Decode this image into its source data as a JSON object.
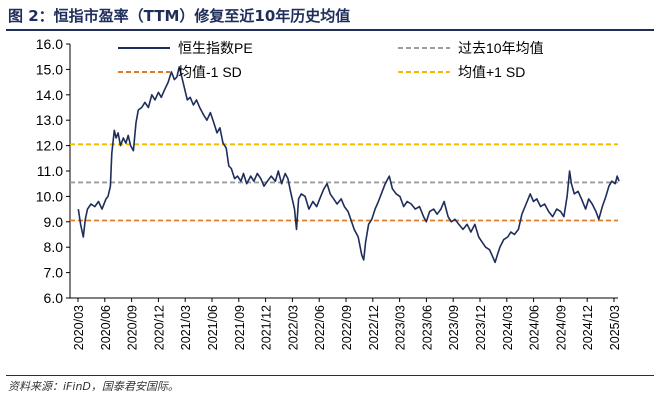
{
  "title": "图 2：恒指市盈率（TTM）修复至近10年历史均值",
  "source": "资料来源：iFinD，国泰君安国际。",
  "chart_data": {
    "type": "line",
    "title": "恒指市盈率（TTM）修复至近10年历史均值",
    "xlabel": "",
    "ylabel": "",
    "ylim": [
      6.0,
      16.0
    ],
    "yticks": [
      "16.0",
      "15.0",
      "14.0",
      "13.0",
      "12.0",
      "11.0",
      "10.0",
      "9.0",
      "8.0",
      "7.0",
      "6.0"
    ],
    "xticks": [
      "2020/03",
      "2020/06",
      "2020/09",
      "2020/12",
      "2021/03",
      "2021/06",
      "2021/09",
      "2021/12",
      "2022/03",
      "2022/06",
      "2022/09",
      "2022/12",
      "2023/03",
      "2023/06",
      "2023/09",
      "2023/12",
      "2024/03",
      "2024/06",
      "2024/09",
      "2024/12",
      "2025/03"
    ],
    "grid": false,
    "legend_placement": "top",
    "series": [
      {
        "name": "恒生指数PE",
        "color": "#1f2d5a",
        "style": "solid",
        "points": [
          [
            "2020-03-02",
            9.5
          ],
          [
            "2020-03-10",
            8.9
          ],
          [
            "2020-03-19",
            8.4
          ],
          [
            "2020-03-26",
            9.1
          ],
          [
            "2020-04-03",
            9.5
          ],
          [
            "2020-04-15",
            9.7
          ],
          [
            "2020-04-28",
            9.6
          ],
          [
            "2020-05-10",
            9.8
          ],
          [
            "2020-05-22",
            9.5
          ],
          [
            "2020-06-05",
            9.9
          ],
          [
            "2020-06-12",
            10.0
          ],
          [
            "2020-06-20",
            10.4
          ],
          [
            "2020-06-25",
            11.7
          ],
          [
            "2020-07-03",
            12.6
          ],
          [
            "2020-07-09",
            12.3
          ],
          [
            "2020-07-16",
            12.5
          ],
          [
            "2020-07-24",
            12.0
          ],
          [
            "2020-08-03",
            12.3
          ],
          [
            "2020-08-12",
            12.1
          ],
          [
            "2020-08-20",
            12.4
          ],
          [
            "2020-08-28",
            12.0
          ],
          [
            "2020-09-07",
            11.8
          ],
          [
            "2020-09-16",
            12.9
          ],
          [
            "2020-09-24",
            13.4
          ],
          [
            "2020-10-05",
            13.5
          ],
          [
            "2020-10-16",
            13.7
          ],
          [
            "2020-10-28",
            13.5
          ],
          [
            "2020-11-09",
            14.0
          ],
          [
            "2020-11-20",
            13.8
          ],
          [
            "2020-12-01",
            14.1
          ],
          [
            "2020-12-11",
            13.9
          ],
          [
            "2020-12-22",
            14.2
          ],
          [
            "2021-01-04",
            14.5
          ],
          [
            "2021-01-15",
            14.9
          ],
          [
            "2021-01-25",
            14.6
          ],
          [
            "2021-02-03",
            14.7
          ],
          [
            "2021-02-11",
            15.1
          ],
          [
            "2021-02-18",
            14.8
          ],
          [
            "2021-02-26",
            14.4
          ],
          [
            "2021-03-08",
            13.8
          ],
          [
            "2021-03-18",
            13.9
          ],
          [
            "2021-03-29",
            13.6
          ],
          [
            "2021-04-09",
            13.8
          ],
          [
            "2021-04-20",
            13.5
          ],
          [
            "2021-05-03",
            13.2
          ],
          [
            "2021-05-14",
            13.0
          ],
          [
            "2021-05-26",
            13.3
          ],
          [
            "2021-06-07",
            12.9
          ],
          [
            "2021-06-18",
            12.5
          ],
          [
            "2021-06-28",
            12.7
          ],
          [
            "2021-07-08",
            12.1
          ],
          [
            "2021-07-19",
            11.9
          ],
          [
            "2021-07-28",
            11.2
          ],
          [
            "2021-08-06",
            11.1
          ],
          [
            "2021-08-17",
            10.7
          ],
          [
            "2021-08-27",
            10.8
          ],
          [
            "2021-09-08",
            10.6
          ],
          [
            "2021-09-17",
            10.9
          ],
          [
            "2021-09-28",
            10.5
          ],
          [
            "2021-10-11",
            10.8
          ],
          [
            "2021-10-22",
            10.6
          ],
          [
            "2021-11-03",
            10.9
          ],
          [
            "2021-11-15",
            10.7
          ],
          [
            "2021-11-26",
            10.4
          ],
          [
            "2021-12-07",
            10.6
          ],
          [
            "2021-12-20",
            10.8
          ],
          [
            "2022-01-04",
            10.6
          ],
          [
            "2022-01-14",
            11.0
          ],
          [
            "2022-01-25",
            10.5
          ],
          [
            "2022-02-07",
            10.9
          ],
          [
            "2022-02-16",
            10.7
          ],
          [
            "2022-02-25",
            10.2
          ],
          [
            "2022-03-08",
            9.5
          ],
          [
            "2022-03-15",
            8.7
          ],
          [
            "2022-03-22",
            9.9
          ],
          [
            "2022-04-01",
            10.1
          ],
          [
            "2022-04-14",
            10.0
          ],
          [
            "2022-04-27",
            9.5
          ],
          [
            "2022-05-10",
            9.8
          ],
          [
            "2022-05-23",
            9.6
          ],
          [
            "2022-06-06",
            10.0
          ],
          [
            "2022-06-17",
            10.3
          ],
          [
            "2022-06-28",
            10.5
          ],
          [
            "2022-07-08",
            10.1
          ],
          [
            "2022-07-20",
            9.9
          ],
          [
            "2022-08-01",
            9.7
          ],
          [
            "2022-08-15",
            9.9
          ],
          [
            "2022-08-26",
            9.6
          ],
          [
            "2022-09-08",
            9.4
          ],
          [
            "2022-09-20",
            9.0
          ],
          [
            "2022-09-29",
            8.7
          ],
          [
            "2022-10-12",
            8.4
          ],
          [
            "2022-10-24",
            7.7
          ],
          [
            "2022-10-31",
            7.5
          ],
          [
            "2022-11-07",
            8.2
          ],
          [
            "2022-11-17",
            8.9
          ],
          [
            "2022-11-28",
            9.1
          ],
          [
            "2022-12-09",
            9.5
          ],
          [
            "2022-12-20",
            9.8
          ],
          [
            "2023-01-03",
            10.2
          ],
          [
            "2023-01-13",
            10.5
          ],
          [
            "2023-01-27",
            10.8
          ],
          [
            "2023-02-07",
            10.3
          ],
          [
            "2023-02-20",
            10.1
          ],
          [
            "2023-03-02",
            10.0
          ],
          [
            "2023-03-15",
            9.6
          ],
          [
            "2023-03-27",
            9.8
          ],
          [
            "2023-04-10",
            9.7
          ],
          [
            "2023-04-24",
            9.5
          ],
          [
            "2023-05-08",
            9.6
          ],
          [
            "2023-05-22",
            9.2
          ],
          [
            "2023-05-31",
            9.0
          ],
          [
            "2023-06-12",
            9.4
          ],
          [
            "2023-06-26",
            9.5
          ],
          [
            "2023-07-07",
            9.3
          ],
          [
            "2023-07-20",
            9.5
          ],
          [
            "2023-07-31",
            9.8
          ],
          [
            "2023-08-14",
            9.2
          ],
          [
            "2023-08-25",
            9.0
          ],
          [
            "2023-09-07",
            9.1
          ],
          [
            "2023-09-20",
            8.9
          ],
          [
            "2023-10-04",
            8.7
          ],
          [
            "2023-10-18",
            8.9
          ],
          [
            "2023-10-31",
            8.6
          ],
          [
            "2023-11-14",
            8.9
          ],
          [
            "2023-11-27",
            8.4
          ],
          [
            "2023-12-08",
            8.2
          ],
          [
            "2023-12-20",
            8.0
          ],
          [
            "2024-01-03",
            7.9
          ],
          [
            "2024-01-15",
            7.6
          ],
          [
            "2024-01-22",
            7.4
          ],
          [
            "2024-01-30",
            7.7
          ],
          [
            "2024-02-08",
            8.0
          ],
          [
            "2024-02-21",
            8.3
          ],
          [
            "2024-03-04",
            8.4
          ],
          [
            "2024-03-15",
            8.6
          ],
          [
            "2024-03-27",
            8.5
          ],
          [
            "2024-04-10",
            8.7
          ],
          [
            "2024-04-22",
            9.3
          ],
          [
            "2024-05-06",
            9.7
          ],
          [
            "2024-05-20",
            10.1
          ],
          [
            "2024-05-31",
            9.8
          ],
          [
            "2024-06-12",
            9.9
          ],
          [
            "2024-06-25",
            9.6
          ],
          [
            "2024-07-08",
            9.7
          ],
          [
            "2024-07-22",
            9.4
          ],
          [
            "2024-08-05",
            9.2
          ],
          [
            "2024-08-19",
            9.5
          ],
          [
            "2024-09-02",
            9.4
          ],
          [
            "2024-09-13",
            9.2
          ],
          [
            "2024-09-24",
            10.0
          ],
          [
            "2024-10-02",
            11.0
          ],
          [
            "2024-10-08",
            10.5
          ],
          [
            "2024-10-18",
            10.1
          ],
          [
            "2024-10-31",
            10.2
          ],
          [
            "2024-11-12",
            9.9
          ],
          [
            "2024-11-26",
            9.5
          ],
          [
            "2024-12-06",
            9.9
          ],
          [
            "2024-12-18",
            9.7
          ],
          [
            "2024-12-31",
            9.4
          ],
          [
            "2025-01-10",
            9.1
          ],
          [
            "2025-01-22",
            9.6
          ],
          [
            "2025-02-04",
            10.0
          ],
          [
            "2025-02-14",
            10.4
          ],
          [
            "2025-02-24",
            10.6
          ],
          [
            "2025-03-05",
            10.5
          ],
          [
            "2025-03-12",
            10.8
          ],
          [
            "2025-03-18",
            10.6
          ]
        ]
      },
      {
        "name": "过去10年均值",
        "color": "#9c9c9c",
        "style": "dashed",
        "value": 10.55
      },
      {
        "name": "均值-1 SD",
        "color": "#e07b2a",
        "style": "dashed",
        "value": 9.05
      },
      {
        "name": "均值+1 SD",
        "color": "#f4b800",
        "style": "dashed",
        "value": 12.05
      }
    ]
  }
}
